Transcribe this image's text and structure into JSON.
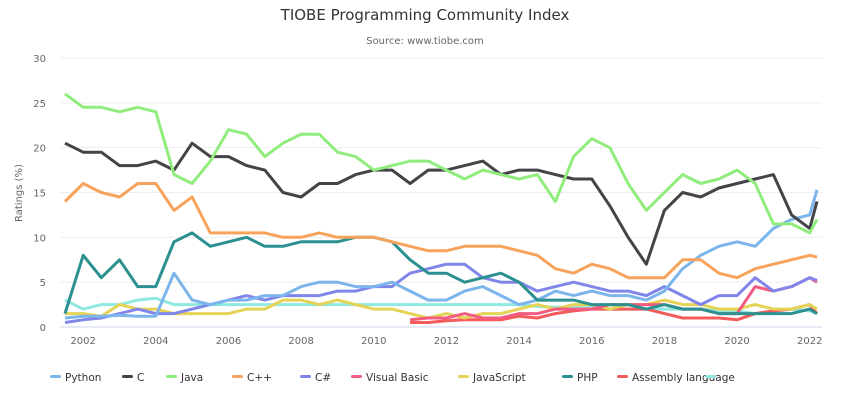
{
  "chart_data": {
    "type": "line",
    "title": "TIOBE Programming Community Index",
    "subtitle": "Source: www.tiobe.com",
    "xlabel": "",
    "ylabel": "Ratings (%)",
    "xlim": [
      2001.5,
      2022.2
    ],
    "ylim": [
      0,
      30
    ],
    "x_ticks": [
      "2002",
      "2004",
      "2006",
      "2008",
      "2010",
      "2012",
      "2014",
      "2016",
      "2018",
      "2020",
      "2022"
    ],
    "y_ticks": [
      "0",
      "5",
      "10",
      "15",
      "20",
      "25",
      "30"
    ],
    "grid": "horizontal",
    "legend_position": "bottom",
    "x": [
      2001.5,
      2002,
      2002.5,
      2003,
      2003.5,
      2004,
      2004.5,
      2005,
      2005.5,
      2006,
      2006.5,
      2007,
      2007.5,
      2008,
      2008.5,
      2009,
      2009.5,
      2010,
      2010.5,
      2011,
      2011.5,
      2012,
      2012.5,
      2013,
      2013.5,
      2014,
      2014.5,
      2015,
      2015.5,
      2016,
      2016.5,
      2017,
      2017.5,
      2018,
      2018.5,
      2019,
      2019.5,
      2020,
      2020.5,
      2021,
      2021.5,
      2022,
      2022.2
    ],
    "series": [
      {
        "name": "Python",
        "color": "#7cb5ec",
        "values": [
          1,
          1.2,
          1.2,
          1.3,
          1.2,
          1.2,
          6,
          3,
          2.5,
          3,
          3,
          3.5,
          3.5,
          4.5,
          5,
          5,
          4.5,
          4.5,
          5,
          4,
          3,
          3,
          4,
          4.5,
          3.5,
          2.5,
          3,
          4,
          3.5,
          4,
          3.5,
          3.5,
          3,
          4,
          6.5,
          8,
          9,
          9.5,
          9,
          11,
          12,
          12.5,
          15.3
        ]
      },
      {
        "name": "C",
        "color": "#434348",
        "values": [
          20.5,
          19.5,
          19.5,
          18,
          18,
          18.5,
          17.5,
          20.5,
          19,
          19,
          18,
          17.5,
          15,
          14.5,
          16,
          16,
          17,
          17.5,
          17.5,
          16,
          17.5,
          17.5,
          18,
          18.5,
          17,
          17.5,
          17.5,
          17,
          16.5,
          16.5,
          13.5,
          10,
          7,
          13,
          15,
          14.5,
          15.5,
          16,
          16.5,
          17,
          12.5,
          11,
          14
        ]
      },
      {
        "name": "Java",
        "color": "#90ed7d",
        "values": [
          26,
          24.5,
          24.5,
          24,
          24.5,
          24,
          17,
          16,
          18.5,
          22,
          21.5,
          19,
          20.5,
          21.5,
          21.5,
          19.5,
          19,
          17.5,
          18,
          18.5,
          18.5,
          17.5,
          16.5,
          17.5,
          17,
          16.5,
          17,
          14,
          19,
          21,
          20,
          16,
          13,
          15,
          17,
          16,
          16.5,
          17.5,
          16,
          11.5,
          11.5,
          10.5,
          12
        ]
      },
      {
        "name": "C++",
        "color": "#f7a35c",
        "values": [
          14,
          16,
          15,
          14.5,
          16,
          16,
          13,
          14.5,
          10.5,
          10.5,
          10.5,
          10.5,
          10,
          10,
          10.5,
          10,
          10,
          10,
          9.5,
          9,
          8.5,
          8.5,
          9,
          9,
          9,
          8.5,
          8,
          6.5,
          6,
          7,
          6.5,
          5.5,
          5.5,
          5.5,
          7.5,
          7.5,
          6,
          5.5,
          6.5,
          7,
          7.5,
          8,
          7.8
        ]
      },
      {
        "name": "C#",
        "color": "#8085e9",
        "values": [
          0.5,
          0.8,
          1,
          1.5,
          2,
          1.5,
          1.5,
          2,
          2.5,
          3,
          3.5,
          3,
          3.5,
          3.5,
          3.5,
          4,
          4,
          4.5,
          4.5,
          6,
          6.5,
          7,
          7,
          5.5,
          5,
          5,
          4,
          4.5,
          5,
          4.5,
          4,
          4,
          3.5,
          4.5,
          3.5,
          2.5,
          3.5,
          3.5,
          5.5,
          4,
          4.5,
          5.5,
          5.2
        ]
      },
      {
        "name": "Visual Basic",
        "color": "#f15c80",
        "values": [
          null,
          null,
          null,
          null,
          null,
          null,
          null,
          null,
          null,
          null,
          null,
          null,
          null,
          null,
          null,
          null,
          null,
          null,
          null,
          0.8,
          1,
          1,
          1.5,
          1,
          1,
          1.5,
          1.5,
          2,
          2,
          2,
          2.5,
          2.5,
          2.5,
          2.5,
          2,
          2,
          1.5,
          1.5,
          4.5,
          4,
          4.5,
          5.5,
          5
        ]
      },
      {
        "name": "JavaScript",
        "color": "#e4d354",
        "values": [
          1.5,
          1.5,
          1.2,
          2.5,
          2,
          2,
          1.5,
          1.5,
          1.5,
          1.5,
          2,
          2,
          3,
          3,
          2.5,
          3,
          2.5,
          2,
          2,
          1.5,
          1,
          1.5,
          1,
          1.5,
          1.5,
          2,
          2.5,
          2,
          2.5,
          2.5,
          2,
          2.5,
          2.5,
          3,
          2.5,
          2.5,
          2,
          2,
          2.5,
          2,
          2,
          2.5,
          2
        ]
      },
      {
        "name": "PHP",
        "color": "#2b908f",
        "values": [
          1.5,
          8,
          5.5,
          7.5,
          4.5,
          4.5,
          9.5,
          10.5,
          9,
          9.5,
          10,
          9,
          9,
          9.5,
          9.5,
          9.5,
          10,
          10,
          9.5,
          7.5,
          6,
          6,
          5,
          5.5,
          6,
          5,
          3,
          3,
          3,
          2.5,
          2.5,
          2.5,
          2,
          2.5,
          2,
          2,
          1.5,
          1.5,
          1.5,
          1.5,
          1.5,
          2,
          1.5
        ]
      },
      {
        "name": "Assembly language",
        "color": "#f45b5b",
        "values": [
          null,
          null,
          null,
          null,
          null,
          null,
          null,
          null,
          null,
          null,
          null,
          null,
          null,
          null,
          null,
          null,
          null,
          null,
          null,
          0.5,
          0.5,
          0.7,
          0.8,
          0.8,
          0.8,
          1.2,
          1,
          1.5,
          1.8,
          2,
          2,
          2,
          2,
          1.5,
          1,
          1,
          1,
          0.8,
          1.5,
          1.8,
          2,
          2.5,
          1.5
        ]
      },
      {
        "name": "",
        "color": "#91e8e1",
        "values": [
          3,
          2,
          2.5,
          2.5,
          3,
          3.2,
          2.5,
          2.5,
          2.5,
          2.5,
          2.5,
          2.5,
          2.5,
          2.5,
          2.5,
          2.5,
          2.5,
          2.5,
          2.5,
          2.5,
          2.5,
          2.5,
          2.5,
          2.5,
          2.5,
          2.5,
          2.3,
          2.2,
          2.2,
          2.2,
          2,
          2,
          2,
          2,
          2,
          2,
          1.8,
          1.8,
          1.5,
          1.8,
          2,
          1.8,
          1.5
        ]
      }
    ]
  }
}
